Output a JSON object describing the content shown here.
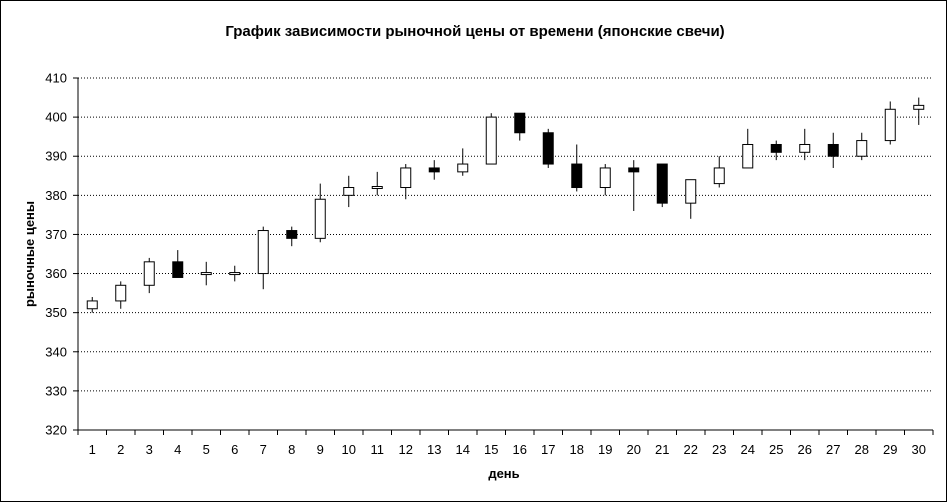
{
  "chart_data": {
    "type": "candlestick",
    "title": "График зависимости рыночной цены от времени (японские свечи)",
    "xlabel": "день",
    "ylabel": "рыночные цены",
    "ylim": [
      320,
      410
    ],
    "ytick_step": 10,
    "grid": "horizontal dotted",
    "legend": "none",
    "up_color": "#ffffff",
    "down_color": "#000000",
    "x": [
      1,
      2,
      3,
      4,
      5,
      6,
      7,
      8,
      9,
      10,
      11,
      12,
      13,
      14,
      15,
      16,
      17,
      18,
      19,
      20,
      21,
      22,
      23,
      24,
      25,
      26,
      27,
      28,
      29,
      30
    ],
    "open": [
      351,
      353,
      357,
      363,
      360,
      360,
      360,
      371,
      369,
      380,
      382,
      382,
      387,
      386,
      388,
      401,
      396,
      388,
      382,
      387,
      388,
      378,
      383,
      387,
      393,
      391,
      393,
      390,
      394,
      402
    ],
    "close": [
      353,
      357,
      363,
      359,
      360,
      360,
      371,
      369,
      379,
      382,
      382,
      387,
      386,
      388,
      400,
      396,
      388,
      382,
      387,
      386,
      378,
      384,
      387,
      393,
      391,
      393,
      390,
      394,
      402,
      403
    ],
    "high": [
      354,
      358,
      364,
      366,
      363,
      362,
      372,
      372,
      383,
      385,
      386,
      388,
      389,
      392,
      401,
      401,
      397,
      393,
      388,
      389,
      388,
      384,
      390,
      397,
      394,
      397,
      396,
      396,
      404,
      405
    ],
    "low": [
      350,
      351,
      355,
      359,
      357,
      358,
      356,
      367,
      368,
      377,
      380,
      379,
      384,
      385,
      388,
      394,
      387,
      381,
      380,
      376,
      377,
      374,
      382,
      387,
      389,
      389,
      387,
      389,
      393,
      398
    ]
  }
}
